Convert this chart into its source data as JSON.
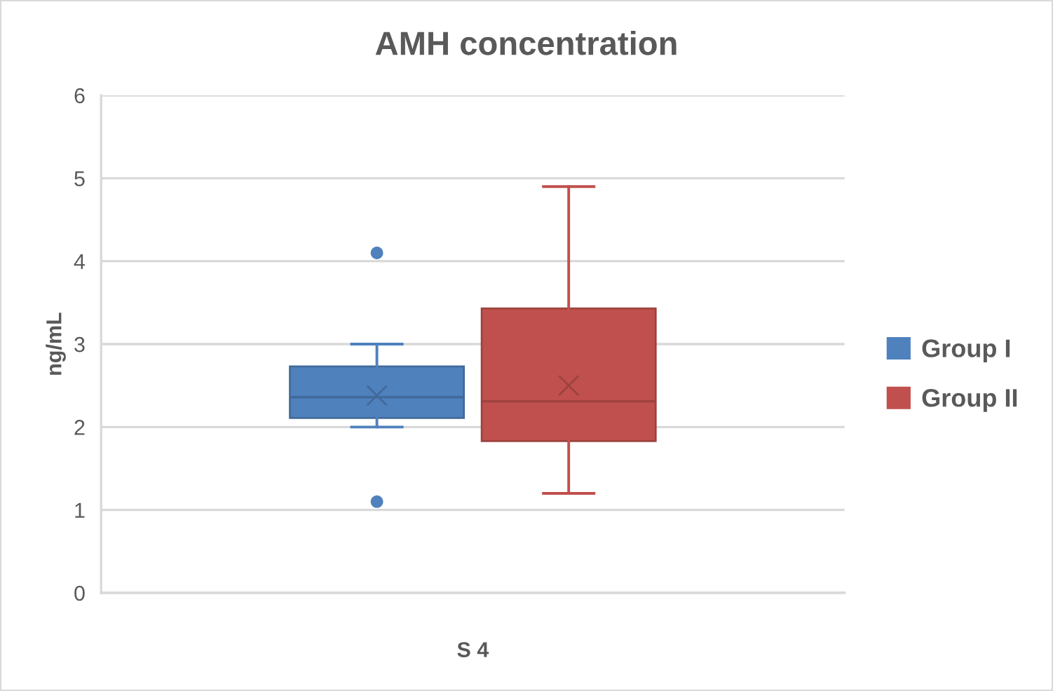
{
  "chart_data": {
    "type": "box",
    "title": "AMH concentration",
    "ylabel": "ng/mL",
    "categories": [
      "S 4"
    ],
    "series": [
      {
        "name": "Group I",
        "color": "#4f81bd",
        "boxes": [
          {
            "low": 2.0,
            "q1": 2.11,
            "median": 2.36,
            "q3": 2.73,
            "high": 3.0,
            "mean": 2.38,
            "outliers": [
              4.1,
              1.1
            ]
          }
        ]
      },
      {
        "name": "Group II",
        "color": "#c0504d",
        "boxes": [
          {
            "low": 1.2,
            "q1": 1.83,
            "median": 2.31,
            "q3": 3.43,
            "high": 4.9,
            "mean": 2.5
          }
        ]
      }
    ],
    "ylim": [
      0,
      6
    ],
    "yticks": [
      0,
      1,
      2,
      3,
      4,
      5,
      6
    ],
    "grid": "y",
    "legend": "right"
  }
}
